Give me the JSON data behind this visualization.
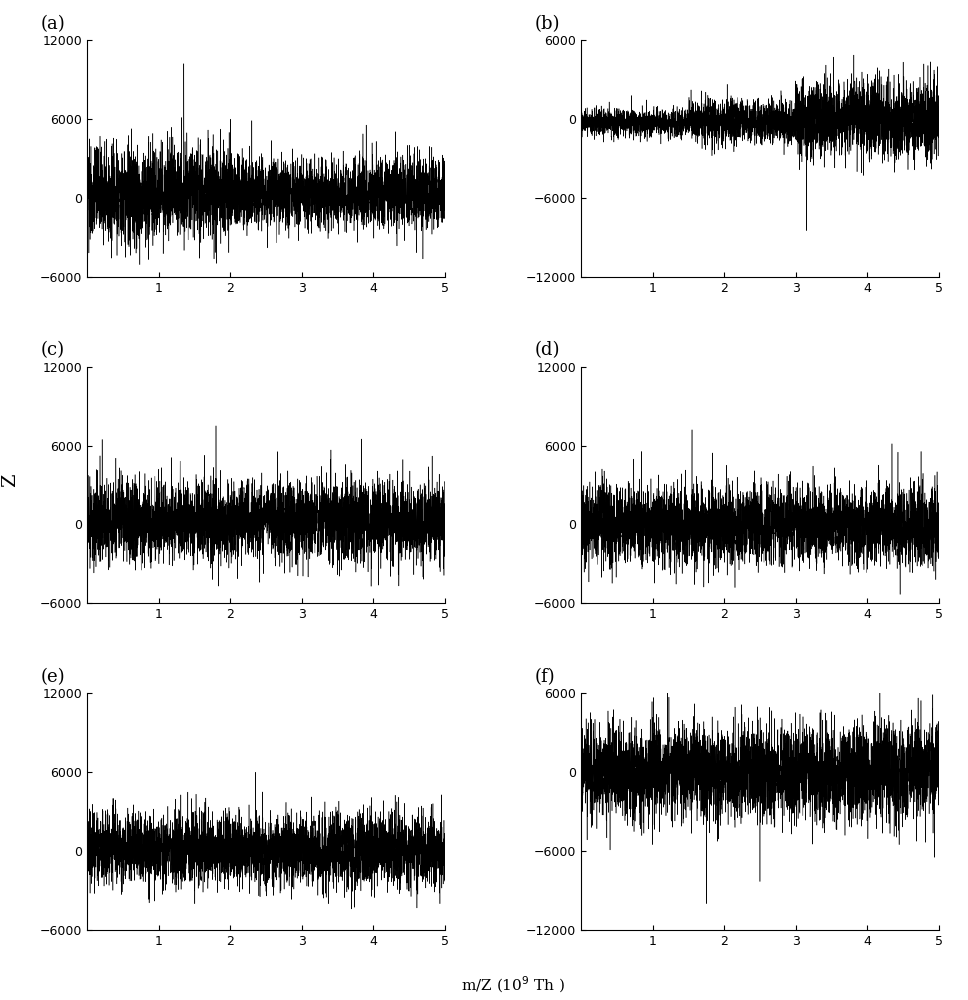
{
  "panels": [
    "a",
    "b",
    "c",
    "d",
    "e",
    "f"
  ],
  "xlim": [
    0,
    5
  ],
  "xticks": [
    1,
    2,
    3,
    4,
    5
  ],
  "panel_configs": {
    "a": {
      "ylim": [
        -6000,
        12000
      ],
      "yticks": [
        -6000,
        0,
        6000,
        12000
      ]
    },
    "b": {
      "ylim": [
        -12000,
        6000
      ],
      "yticks": [
        -12000,
        -6000,
        0,
        6000
      ]
    },
    "c": {
      "ylim": [
        -6000,
        12000
      ],
      "yticks": [
        -6000,
        0,
        6000,
        12000
      ]
    },
    "d": {
      "ylim": [
        -6000,
        12000
      ],
      "yticks": [
        -6000,
        0,
        6000,
        12000
      ]
    },
    "e": {
      "ylim": [
        -6000,
        12000
      ],
      "yticks": [
        -6000,
        0,
        6000,
        12000
      ]
    },
    "f": {
      "ylim": [
        -12000,
        6000
      ],
      "yticks": [
        -12000,
        -6000,
        0,
        6000
      ]
    }
  },
  "xlabel": "m/Z (10⁹ Th )",
  "ylabel": "Z",
  "bg": "#ffffff",
  "fg": "#000000",
  "label_fs": 11,
  "tick_fs": 9,
  "panel_label_fs": 13,
  "hspace": 0.38,
  "wspace": 0.38
}
